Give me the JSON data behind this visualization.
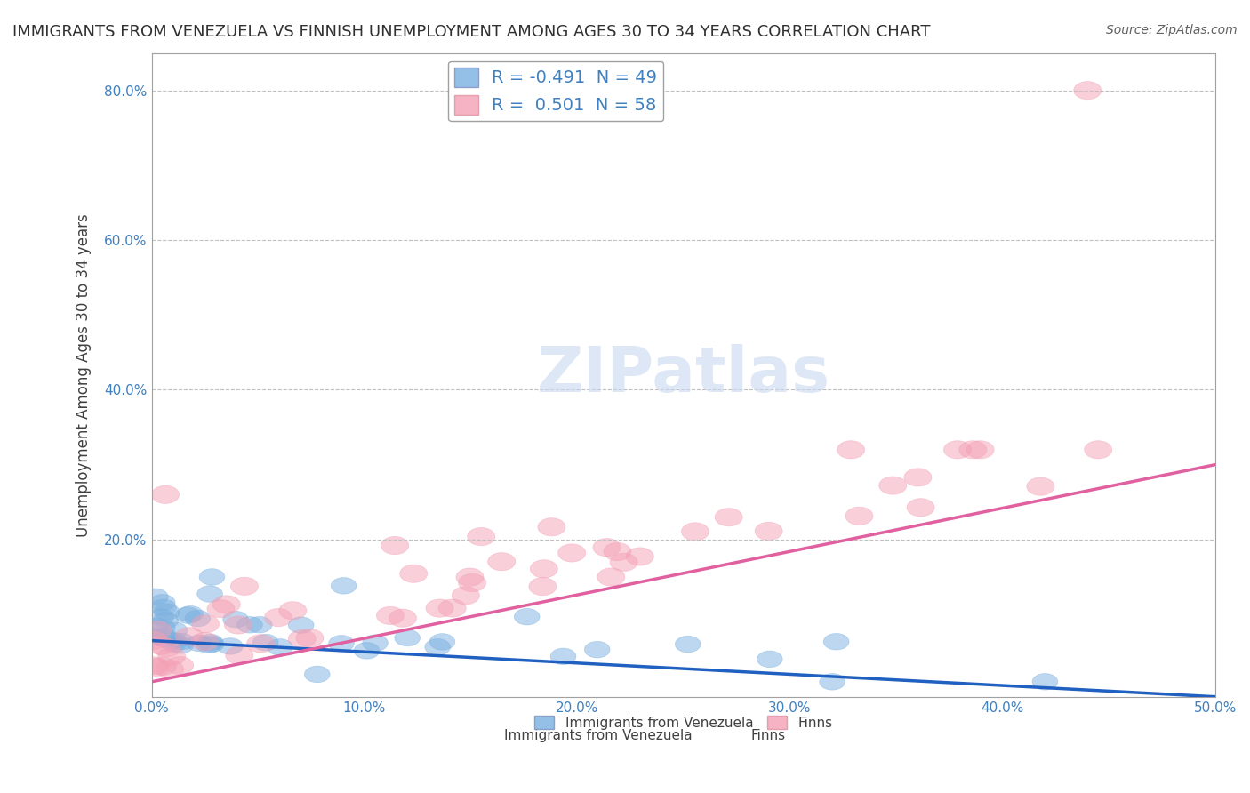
{
  "title": "IMMIGRANTS FROM VENEZUELA VS FINNISH UNEMPLOYMENT AMONG AGES 30 TO 34 YEARS CORRELATION CHART",
  "source": "Source: ZipAtlas.com",
  "xlabel": "",
  "ylabel": "Unemployment Among Ages 30 to 34 years",
  "xlim": [
    0.0,
    0.5
  ],
  "ylim": [
    -0.01,
    0.85
  ],
  "xticks": [
    0.0,
    0.1,
    0.2,
    0.3,
    0.4,
    0.5
  ],
  "xticklabels": [
    "0.0%",
    "10.0%",
    "20.0%",
    "30.0%",
    "40.0%",
    "50.0%"
  ],
  "yticks": [
    0.0,
    0.2,
    0.4,
    0.6,
    0.8
  ],
  "yticklabels": [
    "",
    "20.0%",
    "40.0%",
    "60.0%",
    "80.0%"
  ],
  "legend_entries": [
    {
      "label": "R = -0.491  N = 49",
      "color": "#7ab0e0"
    },
    {
      "label": "R =  0.501  N = 58",
      "color": "#f4a0b0"
    }
  ],
  "blue_R": -0.491,
  "blue_N": 49,
  "pink_R": 0.501,
  "pink_N": 58,
  "blue_color": "#7ab0e0",
  "pink_color": "#f4a0b5",
  "blue_line_color": "#2060c0",
  "pink_line_color": "#e060a0",
  "watermark": "ZIPatlas",
  "watermark_color": "#c8d8f0",
  "background_color": "#ffffff",
  "grid_color": "#c0c0c0",
  "title_fontsize": 13,
  "axis_label_fontsize": 12,
  "tick_fontsize": 11,
  "legend_fontsize": 13
}
